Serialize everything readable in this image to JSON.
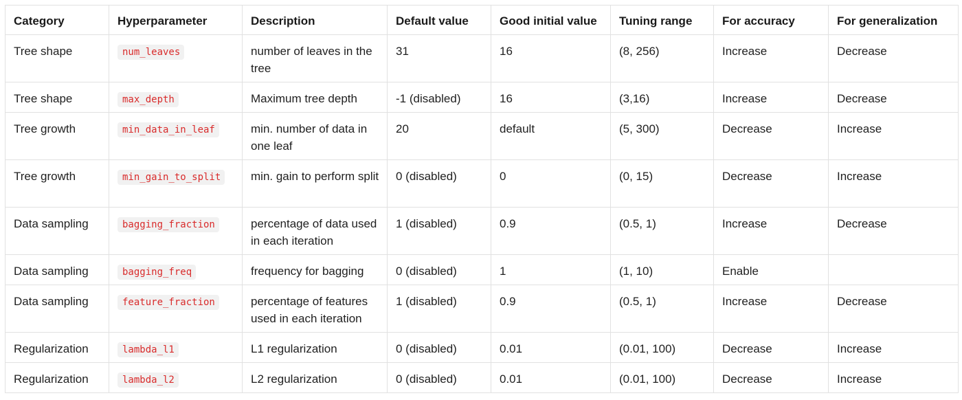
{
  "table": {
    "headers": [
      "Category",
      "Hyperparameter",
      "Description",
      "Default value",
      "Good initial value",
      "Tuning range",
      "For accuracy",
      "For generalization"
    ],
    "rows": [
      [
        "Tree shape",
        "num_leaves",
        "number of leaves in the tree",
        "31",
        "16",
        "(8, 256)",
        "Increase",
        "Decrease"
      ],
      [
        "Tree shape",
        "max_depth",
        "Maximum tree depth",
        "-1 (disabled)",
        "16",
        "(3,16)",
        "Increase",
        "Decrease"
      ],
      [
        "Tree growth",
        "min_data_in_leaf",
        "min. number of data in one leaf",
        "20",
        "default",
        "(5, 300)",
        "Decrease",
        "Increase"
      ],
      [
        "Tree growth",
        "min_gain_to_split",
        "min. gain to perform split",
        "0 (disabled)",
        "0",
        "(0, 15)",
        "Decrease",
        "Increase"
      ],
      [
        "Data sampling",
        "bagging_fraction",
        "percentage of data used in each iteration",
        "1 (disabled)",
        "0.9",
        "(0.5, 1)",
        "Increase",
        "Decrease"
      ],
      [
        "Data sampling",
        "bagging_freq",
        "frequency for bagging",
        "0 (disabled)",
        "1",
        "(1, 10)",
        "Enable",
        ""
      ],
      [
        "Data sampling",
        "feature_fraction",
        "percentage of features used in each iteration",
        "1 (disabled)",
        "0.9",
        "(0.5, 1)",
        "Increase",
        "Decrease"
      ],
      [
        "Regularization",
        "lambda_l1",
        "L1 regularization",
        "0 (disabled)",
        "0.01",
        "(0.01, 100)",
        "Decrease",
        "Increase"
      ],
      [
        "Regularization",
        "lambda_l2",
        "L2 regularization",
        "0 (disabled)",
        "0.01",
        "(0.01, 100)",
        "Decrease",
        "Increase"
      ]
    ]
  }
}
